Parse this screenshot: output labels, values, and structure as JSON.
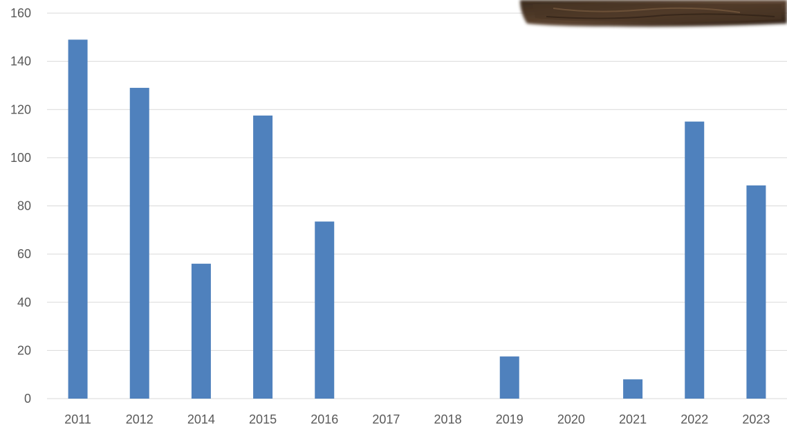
{
  "chart_data": {
    "type": "bar",
    "title": "",
    "xlabel": "",
    "ylabel": "",
    "categories": [
      "2011",
      "2012",
      "2014",
      "2015",
      "2016",
      "2017",
      "2018",
      "2019",
      "2020",
      "2021",
      "2022",
      "2023"
    ],
    "values": [
      149,
      129,
      56,
      117.5,
      73.5,
      0,
      0,
      17.5,
      0,
      8,
      115,
      88.5
    ],
    "ylim": [
      0,
      160
    ],
    "yticks": [
      0,
      20,
      40,
      60,
      80,
      100,
      120,
      140,
      160
    ],
    "grid": true,
    "legend": "none",
    "bar_color": "#4f81bd",
    "gridline_color": "#d9d9d9",
    "tick_label_color": "#595959"
  },
  "decorations": {
    "photo_fragment": "soil-photo"
  }
}
